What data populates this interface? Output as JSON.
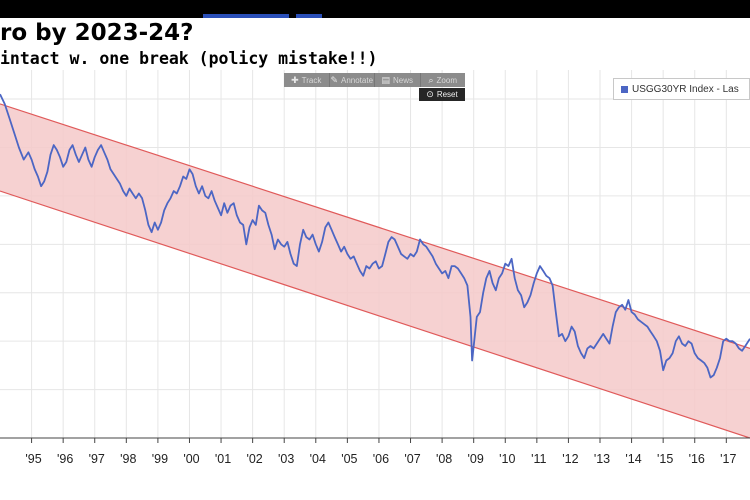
{
  "header": {
    "title": "ro by 2023-24?",
    "subtitle": " intact w. one break (policy mistake!!)"
  },
  "toolbar": {
    "items": [
      {
        "icon": "crosshair-icon",
        "glyph": "✚",
        "label": "Track"
      },
      {
        "icon": "pencil-icon",
        "glyph": "✎",
        "label": "Annotate"
      },
      {
        "icon": "news-icon",
        "glyph": "▤",
        "label": "News"
      },
      {
        "icon": "magnifier-icon",
        "glyph": "⌕",
        "label": "Zoom"
      }
    ],
    "reset_label": "Reset"
  },
  "legend": {
    "label": "USGG30YR Index - Las",
    "color": "#4c66c4"
  },
  "colors": {
    "line": "#4c66c4",
    "channel_fill": "#f5c9c9",
    "channel_edge": "#e05a5a",
    "grid": "#e6e6e6"
  },
  "chart_data": {
    "type": "line",
    "grid": true,
    "xlim": [
      1994.0,
      2017.75
    ],
    "x_ticks": [
      "'95",
      "'96",
      "'97",
      "'98",
      "'99",
      "'00",
      "'01",
      "'02",
      "'03",
      "'04",
      "'05",
      "'06",
      "'07",
      "'08",
      "'09",
      "'10",
      "'11",
      "'12",
      "'13",
      "'14",
      "'15",
      "'16",
      "'17"
    ],
    "y_range_note": "right-hand axis not shown in crop",
    "ylim": [
      1.0,
      8.6
    ],
    "series": [
      {
        "name": "USGG30YR Index - Las",
        "points": [
          [
            1994.0,
            8.1
          ],
          [
            1994.15,
            7.9
          ],
          [
            1994.3,
            7.6
          ],
          [
            1994.45,
            7.3
          ],
          [
            1994.6,
            7.0
          ],
          [
            1994.75,
            6.75
          ],
          [
            1994.9,
            6.9
          ],
          [
            1995.0,
            6.75
          ],
          [
            1995.1,
            6.55
          ],
          [
            1995.2,
            6.4
          ],
          [
            1995.3,
            6.2
          ],
          [
            1995.4,
            6.3
          ],
          [
            1995.5,
            6.5
          ],
          [
            1995.6,
            6.85
          ],
          [
            1995.7,
            7.05
          ],
          [
            1995.8,
            6.95
          ],
          [
            1995.9,
            6.8
          ],
          [
            1996.0,
            6.6
          ],
          [
            1996.1,
            6.7
          ],
          [
            1996.2,
            6.95
          ],
          [
            1996.3,
            7.05
          ],
          [
            1996.4,
            6.85
          ],
          [
            1996.5,
            6.7
          ],
          [
            1996.6,
            6.85
          ],
          [
            1996.7,
            7.0
          ],
          [
            1996.8,
            6.75
          ],
          [
            1996.9,
            6.6
          ],
          [
            1997.0,
            6.8
          ],
          [
            1997.1,
            6.95
          ],
          [
            1997.2,
            7.05
          ],
          [
            1997.3,
            6.9
          ],
          [
            1997.4,
            6.75
          ],
          [
            1997.5,
            6.55
          ],
          [
            1997.6,
            6.45
          ],
          [
            1997.7,
            6.35
          ],
          [
            1997.8,
            6.25
          ],
          [
            1997.9,
            6.1
          ],
          [
            1998.0,
            6.0
          ],
          [
            1998.1,
            6.15
          ],
          [
            1998.2,
            6.05
          ],
          [
            1998.3,
            5.95
          ],
          [
            1998.4,
            6.05
          ],
          [
            1998.5,
            5.95
          ],
          [
            1998.6,
            5.7
          ],
          [
            1998.7,
            5.4
          ],
          [
            1998.8,
            5.25
          ],
          [
            1998.9,
            5.45
          ],
          [
            1999.0,
            5.3
          ],
          [
            1999.1,
            5.45
          ],
          [
            1999.2,
            5.7
          ],
          [
            1999.3,
            5.85
          ],
          [
            1999.4,
            5.95
          ],
          [
            1999.5,
            6.1
          ],
          [
            1999.6,
            6.05
          ],
          [
            1999.7,
            6.2
          ],
          [
            1999.8,
            6.4
          ],
          [
            1999.9,
            6.35
          ],
          [
            2000.0,
            6.55
          ],
          [
            2000.1,
            6.45
          ],
          [
            2000.2,
            6.2
          ],
          [
            2000.3,
            6.05
          ],
          [
            2000.4,
            6.2
          ],
          [
            2000.5,
            6.0
          ],
          [
            2000.6,
            5.95
          ],
          [
            2000.7,
            6.1
          ],
          [
            2000.8,
            5.9
          ],
          [
            2000.9,
            5.75
          ],
          [
            2001.0,
            5.6
          ],
          [
            2001.1,
            5.85
          ],
          [
            2001.2,
            5.65
          ],
          [
            2001.3,
            5.8
          ],
          [
            2001.4,
            5.85
          ],
          [
            2001.5,
            5.6
          ],
          [
            2001.6,
            5.45
          ],
          [
            2001.7,
            5.4
          ],
          [
            2001.8,
            5.0
          ],
          [
            2001.9,
            5.35
          ],
          [
            2002.0,
            5.5
          ],
          [
            2002.1,
            5.4
          ],
          [
            2002.2,
            5.8
          ],
          [
            2002.3,
            5.7
          ],
          [
            2002.4,
            5.65
          ],
          [
            2002.5,
            5.4
          ],
          [
            2002.6,
            5.2
          ],
          [
            2002.7,
            4.9
          ],
          [
            2002.8,
            5.1
          ],
          [
            2002.9,
            5.0
          ],
          [
            2003.0,
            4.95
          ],
          [
            2003.1,
            5.05
          ],
          [
            2003.2,
            4.8
          ],
          [
            2003.3,
            4.6
          ],
          [
            2003.4,
            4.55
          ],
          [
            2003.5,
            5.0
          ],
          [
            2003.6,
            5.3
          ],
          [
            2003.7,
            5.15
          ],
          [
            2003.8,
            5.1
          ],
          [
            2003.9,
            5.2
          ],
          [
            2004.0,
            5.0
          ],
          [
            2004.1,
            4.85
          ],
          [
            2004.2,
            5.05
          ],
          [
            2004.3,
            5.35
          ],
          [
            2004.4,
            5.45
          ],
          [
            2004.5,
            5.3
          ],
          [
            2004.6,
            5.15
          ],
          [
            2004.7,
            5.0
          ],
          [
            2004.8,
            4.85
          ],
          [
            2004.9,
            4.95
          ],
          [
            2005.0,
            4.8
          ],
          [
            2005.1,
            4.7
          ],
          [
            2005.2,
            4.75
          ],
          [
            2005.3,
            4.6
          ],
          [
            2005.4,
            4.45
          ],
          [
            2005.5,
            4.35
          ],
          [
            2005.6,
            4.55
          ],
          [
            2005.7,
            4.5
          ],
          [
            2005.8,
            4.6
          ],
          [
            2005.9,
            4.65
          ],
          [
            2006.0,
            4.5
          ],
          [
            2006.1,
            4.55
          ],
          [
            2006.2,
            4.8
          ],
          [
            2006.3,
            5.05
          ],
          [
            2006.4,
            5.15
          ],
          [
            2006.5,
            5.1
          ],
          [
            2006.6,
            4.95
          ],
          [
            2006.7,
            4.8
          ],
          [
            2006.8,
            4.75
          ],
          [
            2006.9,
            4.7
          ],
          [
            2007.0,
            4.8
          ],
          [
            2007.1,
            4.75
          ],
          [
            2007.2,
            4.85
          ],
          [
            2007.3,
            5.1
          ],
          [
            2007.4,
            5.0
          ],
          [
            2007.5,
            4.95
          ],
          [
            2007.6,
            4.85
          ],
          [
            2007.7,
            4.75
          ],
          [
            2007.8,
            4.6
          ],
          [
            2007.9,
            4.5
          ],
          [
            2008.0,
            4.4
          ],
          [
            2008.1,
            4.45
          ],
          [
            2008.2,
            4.3
          ],
          [
            2008.3,
            4.55
          ],
          [
            2008.4,
            4.55
          ],
          [
            2008.5,
            4.5
          ],
          [
            2008.6,
            4.4
          ],
          [
            2008.7,
            4.3
          ],
          [
            2008.8,
            4.15
          ],
          [
            2008.9,
            3.5
          ],
          [
            2008.95,
            2.6
          ],
          [
            2009.0,
            2.9
          ],
          [
            2009.1,
            3.5
          ],
          [
            2009.2,
            3.6
          ],
          [
            2009.3,
            4.0
          ],
          [
            2009.4,
            4.3
          ],
          [
            2009.5,
            4.45
          ],
          [
            2009.6,
            4.2
          ],
          [
            2009.7,
            4.05
          ],
          [
            2009.8,
            4.3
          ],
          [
            2009.9,
            4.4
          ],
          [
            2010.0,
            4.6
          ],
          [
            2010.1,
            4.55
          ],
          [
            2010.2,
            4.7
          ],
          [
            2010.3,
            4.3
          ],
          [
            2010.4,
            4.05
          ],
          [
            2010.5,
            3.95
          ],
          [
            2010.6,
            3.7
          ],
          [
            2010.7,
            3.8
          ],
          [
            2010.8,
            3.95
          ],
          [
            2010.9,
            4.2
          ],
          [
            2011.0,
            4.4
          ],
          [
            2011.1,
            4.55
          ],
          [
            2011.2,
            4.45
          ],
          [
            2011.3,
            4.35
          ],
          [
            2011.4,
            4.3
          ],
          [
            2011.5,
            4.15
          ],
          [
            2011.6,
            3.6
          ],
          [
            2011.7,
            3.1
          ],
          [
            2011.8,
            3.15
          ],
          [
            2011.9,
            3.0
          ],
          [
            2012.0,
            3.1
          ],
          [
            2012.1,
            3.3
          ],
          [
            2012.2,
            3.2
          ],
          [
            2012.3,
            2.9
          ],
          [
            2012.4,
            2.75
          ],
          [
            2012.5,
            2.65
          ],
          [
            2012.6,
            2.85
          ],
          [
            2012.7,
            2.9
          ],
          [
            2012.8,
            2.85
          ],
          [
            2012.9,
            2.95
          ],
          [
            2013.0,
            3.05
          ],
          [
            2013.1,
            3.15
          ],
          [
            2013.2,
            3.05
          ],
          [
            2013.3,
            2.95
          ],
          [
            2013.4,
            3.3
          ],
          [
            2013.5,
            3.6
          ],
          [
            2013.6,
            3.7
          ],
          [
            2013.7,
            3.75
          ],
          [
            2013.8,
            3.65
          ],
          [
            2013.9,
            3.85
          ],
          [
            2014.0,
            3.6
          ],
          [
            2014.1,
            3.55
          ],
          [
            2014.2,
            3.45
          ],
          [
            2014.3,
            3.4
          ],
          [
            2014.4,
            3.35
          ],
          [
            2014.5,
            3.3
          ],
          [
            2014.6,
            3.2
          ],
          [
            2014.7,
            3.1
          ],
          [
            2014.8,
            3.0
          ],
          [
            2014.9,
            2.8
          ],
          [
            2015.0,
            2.4
          ],
          [
            2015.1,
            2.6
          ],
          [
            2015.2,
            2.65
          ],
          [
            2015.3,
            2.75
          ],
          [
            2015.4,
            3.0
          ],
          [
            2015.5,
            3.1
          ],
          [
            2015.6,
            2.95
          ],
          [
            2015.7,
            2.9
          ],
          [
            2015.8,
            3.0
          ],
          [
            2015.9,
            2.95
          ],
          [
            2016.0,
            2.75
          ],
          [
            2016.1,
            2.65
          ],
          [
            2016.2,
            2.6
          ],
          [
            2016.3,
            2.55
          ],
          [
            2016.4,
            2.45
          ],
          [
            2016.5,
            2.25
          ],
          [
            2016.6,
            2.3
          ],
          [
            2016.7,
            2.45
          ],
          [
            2016.8,
            2.65
          ],
          [
            2016.9,
            3.0
          ],
          [
            2017.0,
            3.05
          ],
          [
            2017.1,
            3.0
          ],
          [
            2017.2,
            3.0
          ],
          [
            2017.3,
            2.95
          ],
          [
            2017.4,
            2.85
          ],
          [
            2017.5,
            2.8
          ],
          [
            2017.6,
            2.9
          ],
          [
            2017.75,
            3.05
          ]
        ]
      }
    ],
    "annotations": [
      {
        "type": "channel",
        "upper": [
          [
            1994.0,
            7.9
          ],
          [
            2017.75,
            2.85
          ]
        ],
        "lower": [
          [
            1994.0,
            6.1
          ],
          [
            2017.75,
            1.0
          ]
        ]
      }
    ]
  }
}
